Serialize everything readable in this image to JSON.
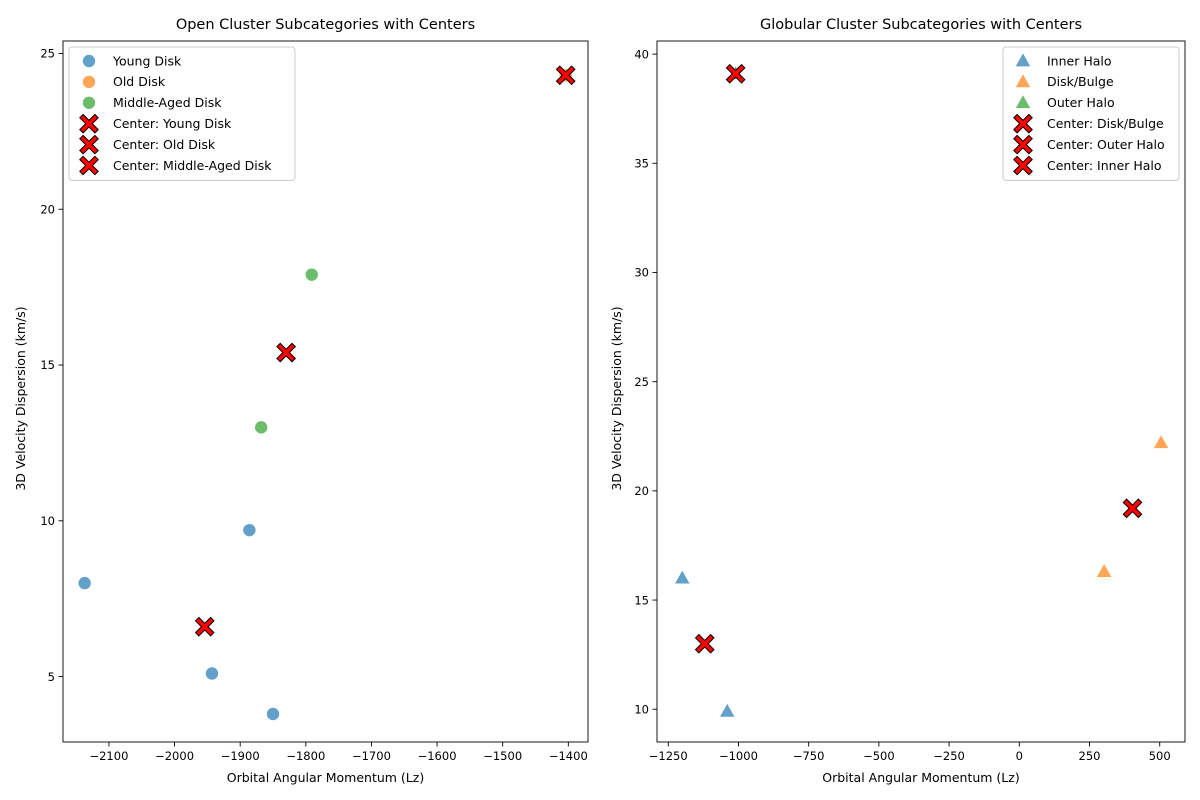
{
  "colors": {
    "blue": "#1f77b4",
    "orange": "#ff7f0e",
    "green": "#2ca02c",
    "center": "#ff0000",
    "center_edge": "#000000"
  },
  "chart_data": [
    {
      "type": "scatter",
      "title": "Open Cluster Subcategories with Centers",
      "xlabel": "Orbital Angular Momentum (Lz)",
      "ylabel": "3D Velocity Dispersion (km/s)",
      "xlim": [
        -2170,
        -1370
      ],
      "ylim": [
        2.9,
        25.4
      ],
      "xticks": [
        -2100,
        -2000,
        -1900,
        -1800,
        -1700,
        -1600,
        -1500,
        -1400
      ],
      "yticks": [
        5,
        10,
        15,
        20,
        25
      ],
      "grid": false,
      "legend_position": "top-left",
      "marker": "circle",
      "series": [
        {
          "name": "Young Disk",
          "color": "#1f77b4",
          "points": [
            {
              "x": -2137,
              "y": 8.0
            },
            {
              "x": -1886,
              "y": 9.7
            },
            {
              "x": -1943,
              "y": 5.1
            },
            {
              "x": -1850,
              "y": 3.8
            }
          ]
        },
        {
          "name": "Old Disk",
          "color": "#ff7f0e",
          "points": [
            {
              "x": -1404,
              "y": 24.3
            }
          ]
        },
        {
          "name": "Middle-Aged Disk",
          "color": "#2ca02c",
          "points": [
            {
              "x": -1868,
              "y": 13.0
            },
            {
              "x": -1791,
              "y": 17.9
            }
          ]
        }
      ],
      "centers": [
        {
          "name": "Center: Young Disk",
          "x": -1954,
          "y": 6.6
        },
        {
          "name": "Center: Old Disk",
          "x": -1404,
          "y": 24.3
        },
        {
          "name": "Center: Middle-Aged Disk",
          "x": -1830,
          "y": 15.4
        }
      ]
    },
    {
      "type": "scatter",
      "title": "Globular Cluster Subcategories with Centers",
      "xlabel": "Orbital Angular Momentum (Lz)",
      "ylabel": "3D Velocity Dispersion (km/s)",
      "xlim": [
        -1290,
        590
      ],
      "ylim": [
        8.5,
        40.6
      ],
      "xticks": [
        -1250,
        -1000,
        -750,
        -500,
        -250,
        0,
        250,
        500
      ],
      "yticks": [
        10,
        15,
        20,
        25,
        30,
        35,
        40
      ],
      "grid": false,
      "legend_position": "top-right",
      "marker": "triangle",
      "series": [
        {
          "name": "Inner Halo",
          "color": "#1f77b4",
          "points": [
            {
              "x": -1200,
              "y": 16.0
            },
            {
              "x": -1040,
              "y": 9.9
            }
          ]
        },
        {
          "name": "Disk/Bulge",
          "color": "#ff7f0e",
          "points": [
            {
              "x": 505,
              "y": 22.2
            },
            {
              "x": 302,
              "y": 16.3
            }
          ]
        },
        {
          "name": "Outer Halo",
          "color": "#2ca02c",
          "points": [
            {
              "x": -1010,
              "y": 39.1
            }
          ]
        }
      ],
      "centers": [
        {
          "name": "Center: Disk/Bulge",
          "x": 403,
          "y": 19.2
        },
        {
          "name": "Center: Outer Halo",
          "x": -1010,
          "y": 39.1
        },
        {
          "name": "Center: Inner Halo",
          "x": -1120,
          "y": 13.0
        }
      ]
    }
  ]
}
